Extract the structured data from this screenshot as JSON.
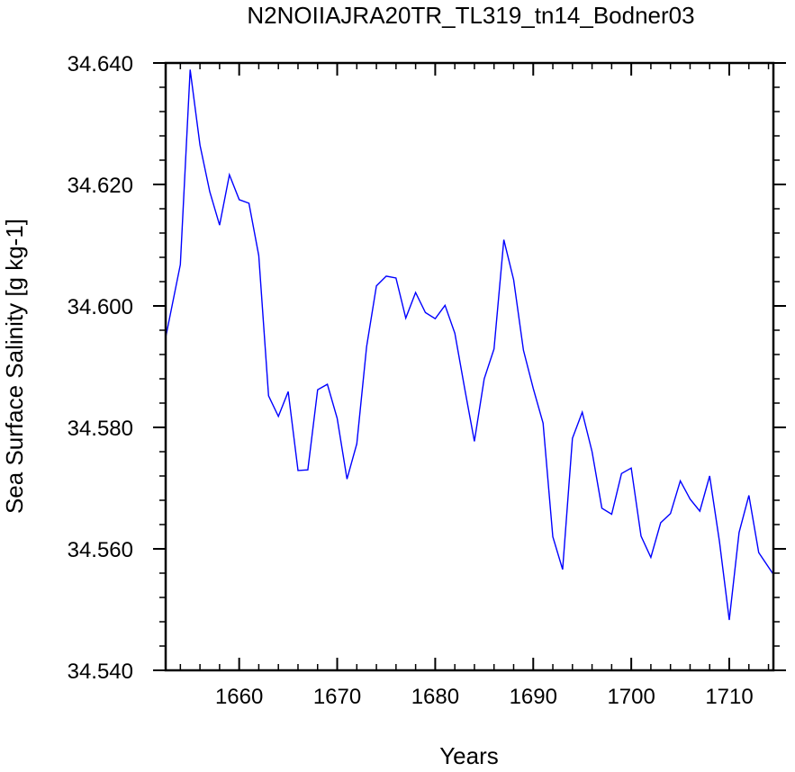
{
  "chart_data": {
    "type": "line",
    "title": "N2NOIIAJRA20TR_TL319_tn14_Bodner03",
    "xlabel": "Years",
    "ylabel": "Sea Surface Salinity [g kg-1]",
    "xlim": [
      1652.5,
      1714.5
    ],
    "ylim": [
      34.54,
      34.64
    ],
    "x_ticks": [
      1660,
      1670,
      1680,
      1690,
      1700,
      1710
    ],
    "x_tick_labels": [
      "1660",
      "1670",
      "1680",
      "1690",
      "1700",
      "1710"
    ],
    "y_ticks": [
      34.54,
      34.56,
      34.58,
      34.6,
      34.62,
      34.64
    ],
    "y_tick_labels": [
      "34.540",
      "34.560",
      "34.580",
      "34.600",
      "34.620",
      "34.640"
    ],
    "grid": false,
    "series": [
      {
        "color": "#0000ff",
        "x": [
          1652.5,
          1654,
          1655,
          1656,
          1657,
          1658,
          1659,
          1660,
          1661,
          1662,
          1663,
          1664,
          1665,
          1666,
          1667,
          1668,
          1669,
          1670,
          1671,
          1672,
          1673,
          1674,
          1675,
          1676,
          1677,
          1678,
          1679,
          1680,
          1681,
          1682,
          1683,
          1684,
          1685,
          1686,
          1687,
          1688,
          1689,
          1690,
          1691,
          1692,
          1693,
          1694,
          1695,
          1696,
          1697,
          1698,
          1699,
          1700,
          1701,
          1702,
          1703,
          1704,
          1705,
          1706,
          1707,
          1708,
          1709,
          1710,
          1711,
          1712,
          1713,
          1714.5
        ],
        "values": [
          34.5948,
          34.6068,
          34.6389,
          34.6265,
          34.6188,
          34.6133,
          34.6216,
          34.6175,
          34.6169,
          34.6083,
          34.5852,
          34.5818,
          34.5859,
          34.5729,
          34.573,
          34.5862,
          34.5871,
          34.5815,
          34.5715,
          34.5773,
          34.5933,
          34.6033,
          34.6049,
          34.6046,
          34.598,
          34.6022,
          34.5989,
          34.5979,
          34.6001,
          34.5955,
          34.5864,
          34.5777,
          34.588,
          34.5929,
          34.6109,
          34.6043,
          34.5927,
          34.5864,
          34.5807,
          34.562,
          34.5566,
          34.5782,
          34.5825,
          34.576,
          34.5667,
          34.5657,
          34.5724,
          34.5733,
          34.5621,
          34.5586,
          34.5643,
          34.5658,
          34.5712,
          34.5682,
          34.5662,
          34.572,
          34.5612,
          34.5483,
          34.5627,
          34.5688,
          34.5594,
          34.5558
        ]
      }
    ]
  }
}
